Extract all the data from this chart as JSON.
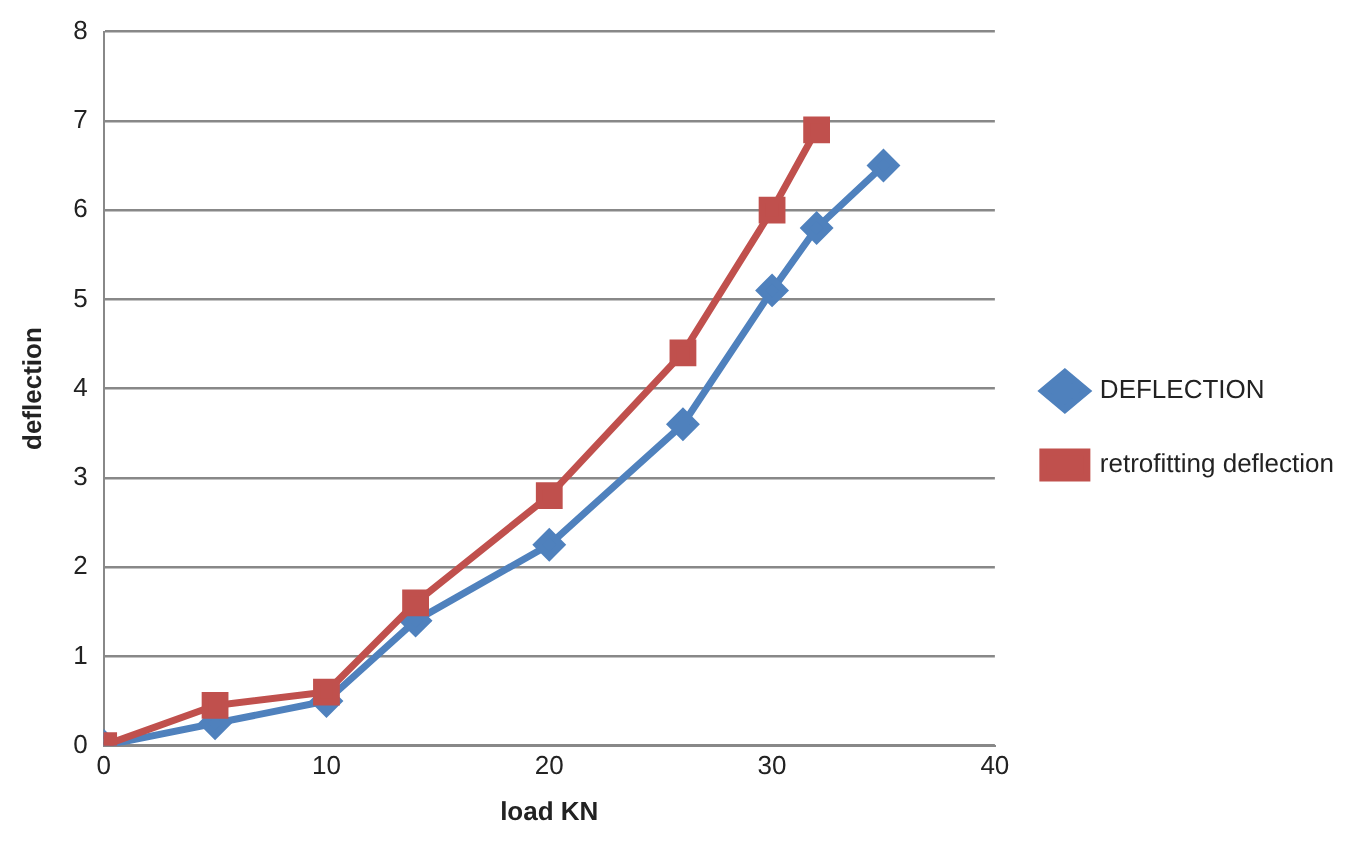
{
  "chart_data": {
    "type": "line",
    "xlabel": "load KN",
    "ylabel": "deflection",
    "xlim": [
      0,
      40
    ],
    "xticks": [
      0,
      10,
      20,
      30,
      40
    ],
    "ylim": [
      0,
      8
    ],
    "yticks": [
      0,
      1,
      2,
      3,
      4,
      5,
      6,
      7,
      8
    ],
    "grid": "y",
    "legend": "right",
    "series": [
      {
        "name": "DEFLECTION",
        "color": "#4f81bd",
        "marker": "diamond",
        "x": [
          0,
          5,
          10,
          14,
          20,
          26,
          30,
          32,
          35
        ],
        "values": [
          0,
          0.25,
          0.5,
          1.4,
          2.25,
          3.6,
          5.1,
          5.8,
          6.5
        ]
      },
      {
        "name": "retrofitting deflection",
        "color": "#c0504d",
        "marker": "square",
        "x": [
          0,
          5,
          10,
          14,
          20,
          26,
          30,
          32
        ],
        "values": [
          0,
          0.45,
          0.6,
          1.6,
          2.8,
          4.4,
          6.0,
          6.9
        ]
      }
    ]
  }
}
